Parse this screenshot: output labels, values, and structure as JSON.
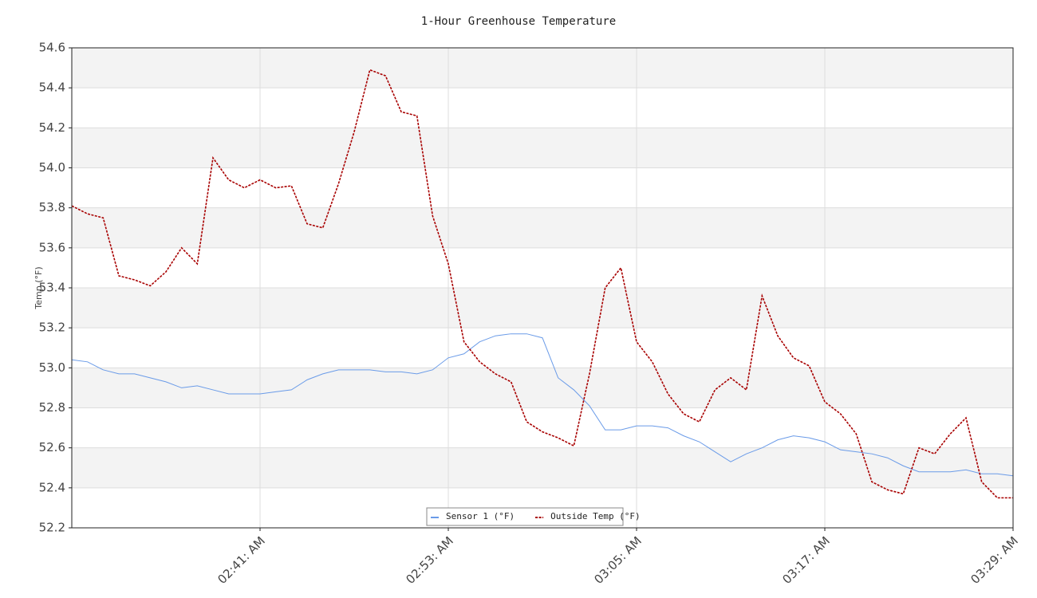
{
  "chart_data": {
    "type": "line",
    "title": "1-Hour Greenhouse Temperature",
    "y_label": "Temp (°F)",
    "x": [
      149,
      150,
      151,
      152,
      153,
      154,
      155,
      156,
      157,
      158,
      159,
      160,
      161,
      162,
      163,
      164,
      165,
      166,
      167,
      168,
      169,
      170,
      171,
      172,
      173,
      174,
      175,
      176,
      177,
      178,
      179,
      180,
      181,
      182,
      183,
      184,
      185,
      186,
      187,
      188,
      189,
      190,
      191,
      192,
      193,
      194,
      195,
      196,
      197,
      198,
      199,
      200,
      201,
      202,
      203,
      204,
      205,
      206,
      207,
      208,
      209
    ],
    "xlim": [
      149,
      209
    ],
    "xticks": [
      {
        "value": 161,
        "label": "02:41: AM"
      },
      {
        "value": 173,
        "label": "02:53: AM"
      },
      {
        "value": 185,
        "label": "03:05: AM"
      },
      {
        "value": 197,
        "label": "03:17: AM"
      },
      {
        "value": 209,
        "label": "03:29: AM"
      }
    ],
    "ylim": [
      52.2,
      54.6
    ],
    "yticks": [
      52.2,
      52.4,
      52.6,
      52.8,
      {
        "value": 53,
        "label": "53.0"
      },
      53.2,
      53.4,
      53.6,
      53.8,
      {
        "value": 54,
        "label": "54.0"
      },
      54.2,
      54.4,
      54.6
    ],
    "grid": true,
    "legend": "bottom",
    "series": [
      {
        "name": "Sensor 1 (°F)",
        "color": "#6a9be8",
        "dashed": false,
        "values": [
          53.04,
          53.03,
          52.99,
          52.97,
          52.97,
          52.95,
          52.93,
          52.9,
          52.91,
          52.89,
          52.87,
          52.87,
          52.87,
          52.88,
          52.89,
          52.94,
          52.97,
          52.99,
          52.99,
          52.99,
          52.98,
          52.98,
          52.97,
          52.99,
          53.05,
          53.07,
          53.13,
          53.16,
          53.17,
          53.17,
          53.15,
          52.95,
          52.89,
          52.81,
          52.69,
          52.69,
          52.71,
          52.71,
          52.7,
          52.66,
          52.63,
          52.58,
          52.53,
          52.57,
          52.6,
          52.64,
          52.66,
          52.65,
          52.63,
          52.59,
          52.58,
          52.57,
          52.55,
          52.51,
          52.48,
          52.48,
          52.48,
          52.49,
          52.47,
          52.47,
          52.46
        ]
      },
      {
        "name": "Outside Temp (°F)",
        "color": "#a80000",
        "dashed": true,
        "values": [
          53.81,
          53.77,
          53.75,
          53.46,
          53.44,
          53.41,
          53.48,
          53.6,
          53.52,
          54.05,
          53.94,
          53.9,
          53.94,
          53.9,
          53.91,
          53.72,
          53.7,
          53.92,
          54.18,
          54.49,
          54.46,
          54.28,
          54.26,
          53.76,
          53.52,
          53.13,
          53.03,
          52.97,
          52.93,
          52.73,
          52.68,
          52.65,
          52.61,
          52.97,
          53.4,
          53.5,
          53.13,
          53.03,
          52.87,
          52.77,
          52.73,
          52.89,
          52.95,
          52.89,
          53.36,
          53.16,
          53.05,
          53.01,
          52.83,
          52.77,
          52.67,
          52.43,
          52.39,
          52.37,
          52.6,
          52.57,
          52.67,
          52.75,
          52.43,
          52.35,
          52.35
        ]
      }
    ]
  }
}
